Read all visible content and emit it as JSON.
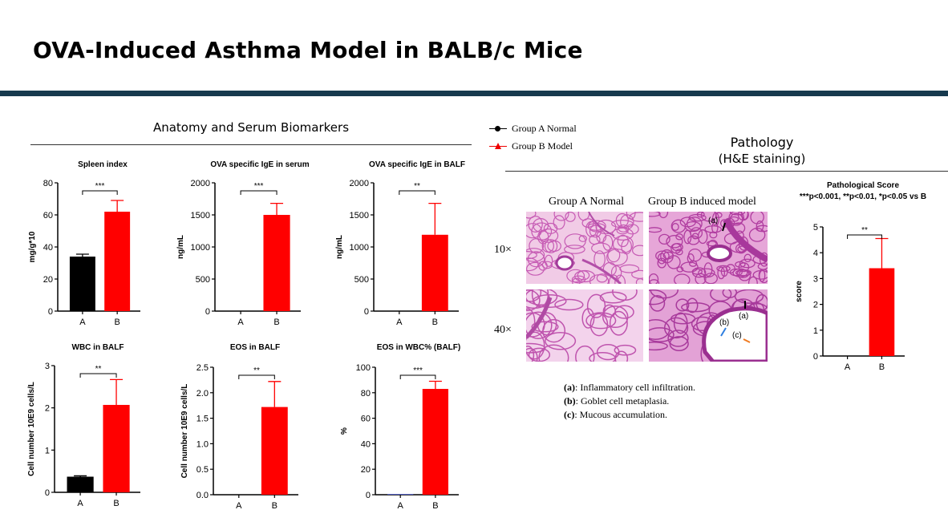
{
  "slide": {
    "title": "OVA-Induced Asthma Model in BALB/c Mice",
    "left_section_title": "Anatomy and Serum Biomarkers",
    "right_section_title_1": "Pathology",
    "right_section_title_2": "(H&E staining)"
  },
  "legend": {
    "items": [
      {
        "label": "Group A Normal",
        "color": "#000000",
        "marker": "circle"
      },
      {
        "label": "Group B Model",
        "color": "#ee0000",
        "marker": "triangle"
      }
    ]
  },
  "pathology": {
    "col_a": "Group A Normal",
    "col_b": "Group B induced model",
    "row_10": "10×",
    "row_40": "40×",
    "markers": {
      "a1": "(a)",
      "a2": "(a)",
      "b": "(b)",
      "c": "(c)"
    },
    "notes": [
      {
        "key": "(a)",
        "text": ": Inflammatory cell infiltration."
      },
      {
        "key": "(b)",
        "text": ": Goblet cell metaplasia."
      },
      {
        "key": "(c)",
        "text": ": Mucous accumulation."
      }
    ]
  },
  "colors": {
    "group_a": "#000000",
    "group_b": "#ff0000",
    "eos_a": "#4a5bd6",
    "rule": "#173a4e"
  },
  "chart_data": [
    {
      "type": "bar",
      "title": "Spleen index",
      "ylabel": "mg/g*10",
      "categories": [
        "A",
        "B"
      ],
      "values": [
        34,
        62
      ],
      "errors": [
        1.5,
        7
      ],
      "ylim": [
        0,
        80
      ],
      "yticks": [
        "0",
        "20",
        "40",
        "60",
        "80"
      ],
      "sig": "***"
    },
    {
      "type": "bar",
      "title": "OVA specific IgE in serum",
      "ylabel": "ng/mL",
      "categories": [
        "A",
        "B"
      ],
      "values": [
        0,
        1500
      ],
      "errors": [
        0,
        180
      ],
      "ylim": [
        0,
        2000
      ],
      "yticks": [
        "0",
        "500",
        "1000",
        "1500",
        "2000"
      ],
      "sig": "***"
    },
    {
      "type": "bar",
      "title": "OVA specific IgE in BALF",
      "ylabel": "ng/mL",
      "categories": [
        "A",
        "B"
      ],
      "values": [
        0,
        1190
      ],
      "errors": [
        0,
        490
      ],
      "ylim": [
        0,
        2000
      ],
      "yticks": [
        "0",
        "500",
        "1000",
        "1500",
        "2000"
      ],
      "sig": "**"
    },
    {
      "type": "bar",
      "title": "WBC in BALF",
      "ylabel": "Cell number 10E9 cells/L",
      "categories": [
        "A",
        "B"
      ],
      "values": [
        0.37,
        2.07
      ],
      "errors": [
        0.02,
        0.6
      ],
      "ylim": [
        0,
        3
      ],
      "yticks": [
        "0",
        "1",
        "2",
        "3"
      ],
      "sig": "**"
    },
    {
      "type": "bar",
      "title": "EOS in BALF",
      "ylabel": "Cell number 10E9 cells/L",
      "categories": [
        "A",
        "B"
      ],
      "values": [
        0,
        1.72
      ],
      "errors": [
        0,
        0.5
      ],
      "ylim": [
        0,
        2.5
      ],
      "yticks": [
        "0.0",
        "0.5",
        "1.0",
        "1.5",
        "2.0",
        "2.5"
      ],
      "sig": "**"
    },
    {
      "type": "bar",
      "title": "EOS in WBC% (BALF)",
      "ylabel": "%",
      "categories": [
        "A",
        "B"
      ],
      "values": [
        0.5,
        83
      ],
      "errors": [
        0,
        6
      ],
      "ylim": [
        0,
        100
      ],
      "yticks": [
        "0",
        "20",
        "40",
        "60",
        "80",
        "100"
      ],
      "sig": "***"
    },
    {
      "type": "bar",
      "title": "Pathological Score",
      "subtitle": "***p<0.001, **p<0.01, *p<0.05 vs B",
      "ylabel": "score",
      "categories": [
        "A",
        "B"
      ],
      "values": [
        0,
        3.4
      ],
      "errors": [
        0,
        1.15
      ],
      "ylim": [
        0,
        5
      ],
      "yticks": [
        "0",
        "1",
        "2",
        "3",
        "4",
        "5"
      ],
      "sig": "**"
    }
  ]
}
